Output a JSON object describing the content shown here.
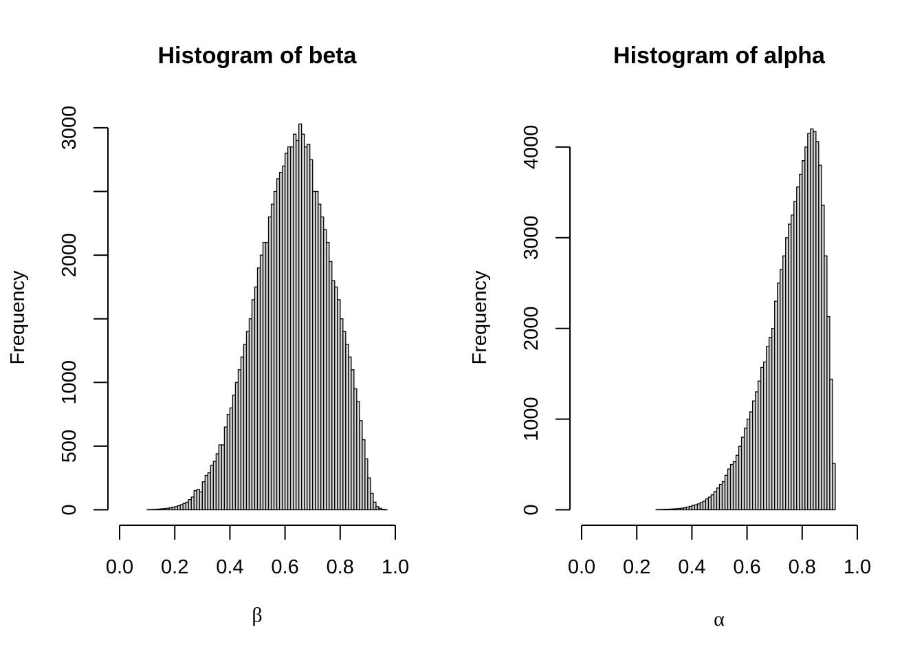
{
  "chart_data": [
    {
      "type": "bar",
      "title": "Histogram of beta",
      "xlabel": "β",
      "ylabel": "Frequency",
      "xlim": [
        0,
        1
      ],
      "xticks": [
        0.0,
        0.2,
        0.4,
        0.6,
        0.8,
        1.0
      ],
      "xtick_labels": [
        "0.0",
        "0.2",
        "0.4",
        "0.6",
        "0.8",
        "1.0"
      ],
      "yticks": [
        0,
        500,
        1000,
        1500,
        2000,
        2500,
        3000
      ],
      "ytick_labels": [
        "0",
        "500",
        "1000",
        "",
        "2000",
        "",
        "3000"
      ],
      "bin_width": 0.01,
      "x_start": 0.1,
      "values": [
        1,
        2,
        3,
        4,
        6,
        8,
        10,
        12,
        16,
        20,
        25,
        32,
        40,
        50,
        60,
        80,
        100,
        150,
        160,
        140,
        220,
        270,
        290,
        350,
        380,
        440,
        510,
        510,
        650,
        750,
        800,
        900,
        1000,
        1100,
        1200,
        1300,
        1400,
        1500,
        1650,
        1750,
        1900,
        2000,
        2100,
        2100,
        2300,
        2400,
        2500,
        2600,
        2650,
        2700,
        2800,
        2850,
        2850,
        2950,
        2900,
        3030,
        2950,
        2850,
        2870,
        2750,
        2500,
        2500,
        2400,
        2300,
        2200,
        2100,
        1950,
        1800,
        1750,
        1650,
        1500,
        1400,
        1300,
        1200,
        1100,
        950,
        850,
        700,
        550,
        400,
        250,
        130,
        60,
        25,
        12,
        4,
        1
      ]
    },
    {
      "type": "bar",
      "title": "Histogram of alpha",
      "xlabel": "α",
      "ylabel": "Frequency",
      "xlim": [
        0,
        1
      ],
      "xticks": [
        0.0,
        0.2,
        0.4,
        0.6,
        0.8,
        1.0
      ],
      "xtick_labels": [
        "0.0",
        "0.2",
        "0.4",
        "0.6",
        "0.8",
        "1.0"
      ],
      "yticks": [
        0,
        1000,
        2000,
        3000,
        4000
      ],
      "ytick_labels": [
        "0",
        "1000",
        "2000",
        "3000",
        "4000"
      ],
      "bin_width": 0.01,
      "x_start": 0.27,
      "values": [
        2,
        3,
        4,
        5,
        6,
        8,
        10,
        12,
        15,
        18,
        22,
        30,
        38,
        48,
        55,
        65,
        80,
        95,
        120,
        140,
        165,
        200,
        240,
        280,
        310,
        380,
        450,
        500,
        530,
        600,
        700,
        800,
        900,
        1000,
        1080,
        1200,
        1300,
        1420,
        1570,
        1630,
        1800,
        1900,
        2000,
        2300,
        2500,
        2650,
        2800,
        3000,
        3150,
        3250,
        3400,
        3560,
        3700,
        3850,
        4000,
        4150,
        4200,
        4170,
        4060,
        3800,
        3360,
        2800,
        2130,
        1440,
        510
      ]
    }
  ]
}
